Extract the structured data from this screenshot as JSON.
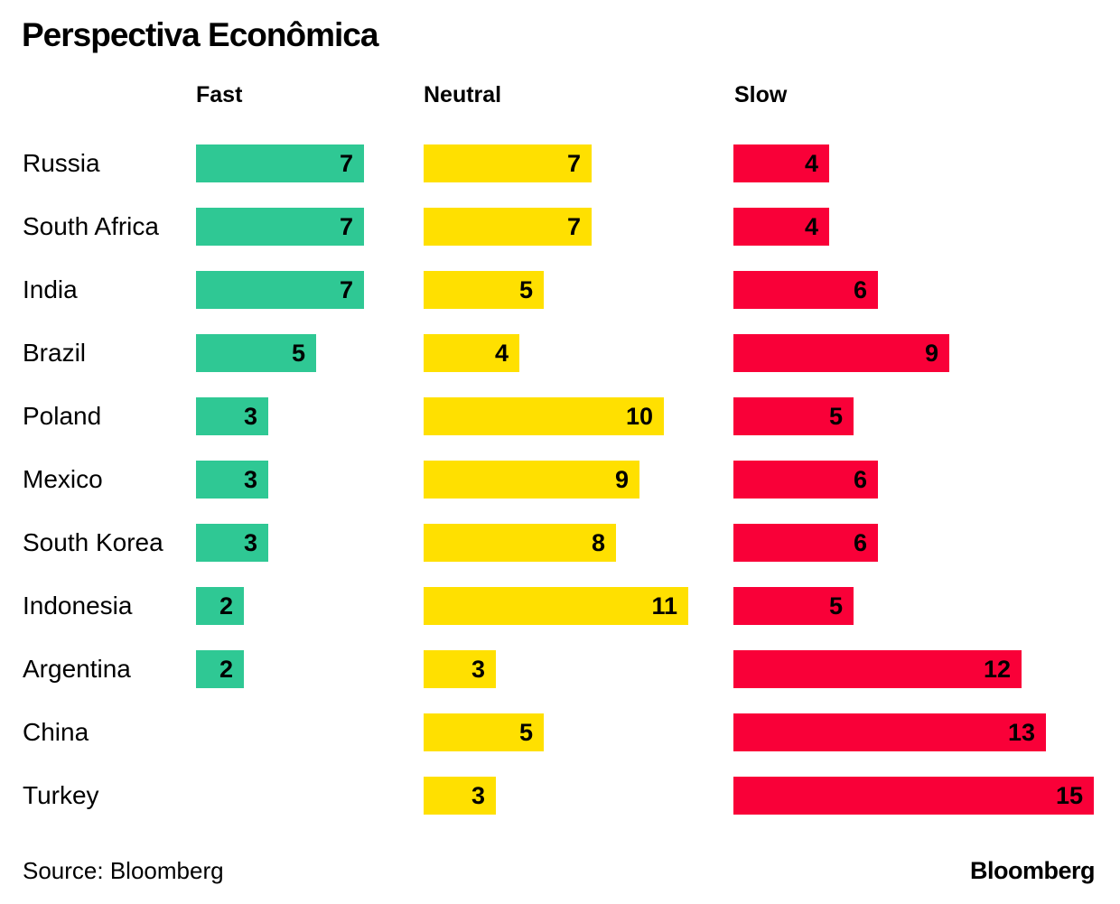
{
  "title": "Perspectiva Econômica",
  "columns": [
    {
      "label": "Fast",
      "color": "#2FC894"
    },
    {
      "label": "Neutral",
      "color": "#FFE000"
    },
    {
      "label": "Slow",
      "color": "#F90038"
    }
  ],
  "footer": {
    "source": "Source: Bloomberg",
    "logo": "Bloomberg"
  },
  "chart_data": {
    "type": "bar",
    "orientation": "horizontal",
    "title": "Perspectiva Econômica",
    "value_labels": true,
    "legend_position": "top",
    "grid": false,
    "xlim": [
      0,
      15
    ],
    "categories": [
      "Russia",
      "South Africa",
      "India",
      "Brazil",
      "Poland",
      "Mexico",
      "South Korea",
      "Indonesia",
      "Argentina",
      "China",
      "Turkey"
    ],
    "series": [
      {
        "name": "Fast",
        "color": "#2FC894",
        "values": [
          7,
          7,
          7,
          5,
          3,
          3,
          3,
          2,
          2,
          null,
          null
        ]
      },
      {
        "name": "Neutral",
        "color": "#FFE000",
        "values": [
          7,
          7,
          5,
          4,
          10,
          9,
          8,
          11,
          3,
          5,
          3
        ]
      },
      {
        "name": "Slow",
        "color": "#F90038",
        "values": [
          4,
          4,
          6,
          9,
          5,
          6,
          6,
          5,
          12,
          13,
          15
        ]
      }
    ]
  }
}
